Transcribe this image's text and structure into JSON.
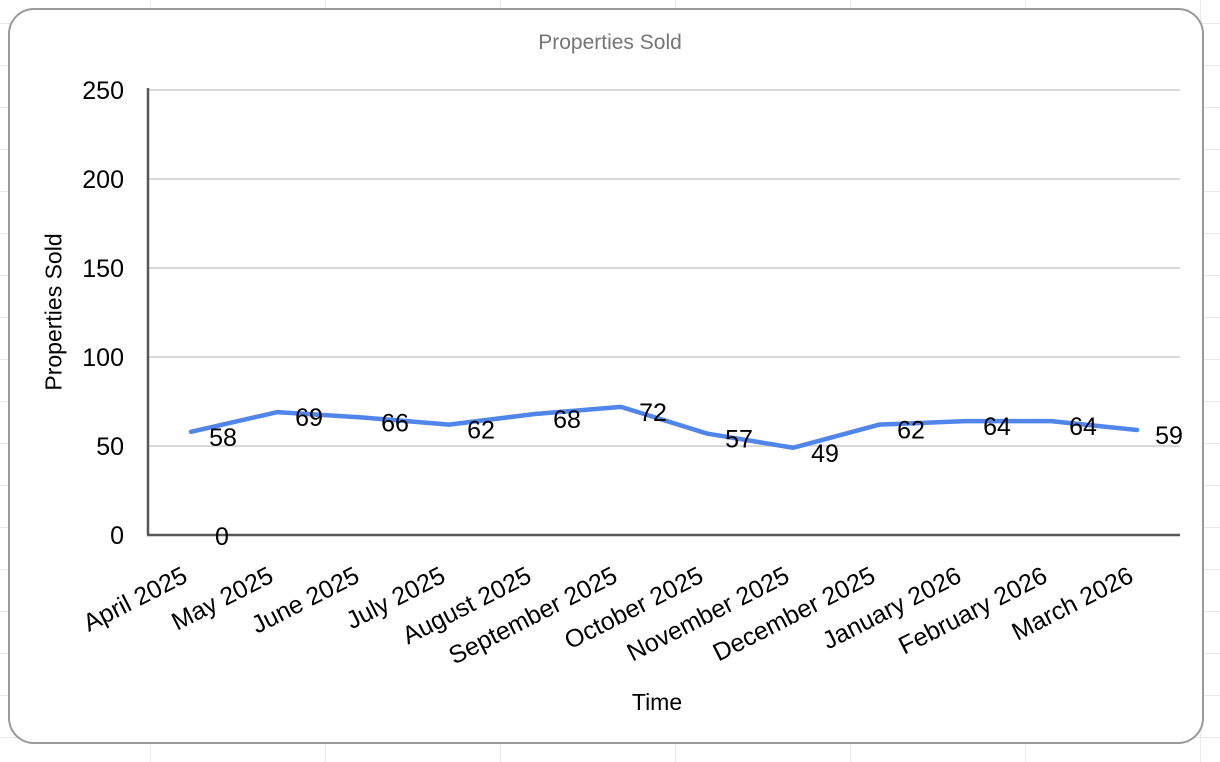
{
  "chart_card": {
    "border_color": "#9a9a9a",
    "background": "#ffffff"
  },
  "sheet_background": {
    "gridline_color": "#e9e9e9"
  },
  "chart_data": {
    "type": "line",
    "title": "Properties Sold",
    "xlabel": "Time",
    "ylabel": "Properties Sold",
    "categories": [
      "April 2025",
      "May 2025",
      "June 2025",
      "July 2025",
      "August 2025",
      "September 2025",
      "October 2025",
      "November 2025",
      "December 2025",
      "January 2026",
      "February 2026",
      "March 2026"
    ],
    "series": [
      {
        "name": "Properties Sold",
        "values": [
          58,
          69,
          66,
          62,
          68,
          72,
          57,
          49,
          62,
          64,
          64,
          59
        ]
      }
    ],
    "extra_labels": [
      {
        "category": "April 2025",
        "value": 0
      }
    ],
    "data_labels": true,
    "ylim": [
      0,
      250
    ],
    "yticks": [
      0,
      50,
      100,
      150,
      200,
      250
    ],
    "grid": true,
    "legend": "none",
    "line_color": "#5086ec",
    "title_color": "#757575",
    "axis_color": "#575757",
    "gridline_color": "#d9d9d9",
    "label_color": "#000000",
    "x_tick_rotation_deg": -27
  }
}
